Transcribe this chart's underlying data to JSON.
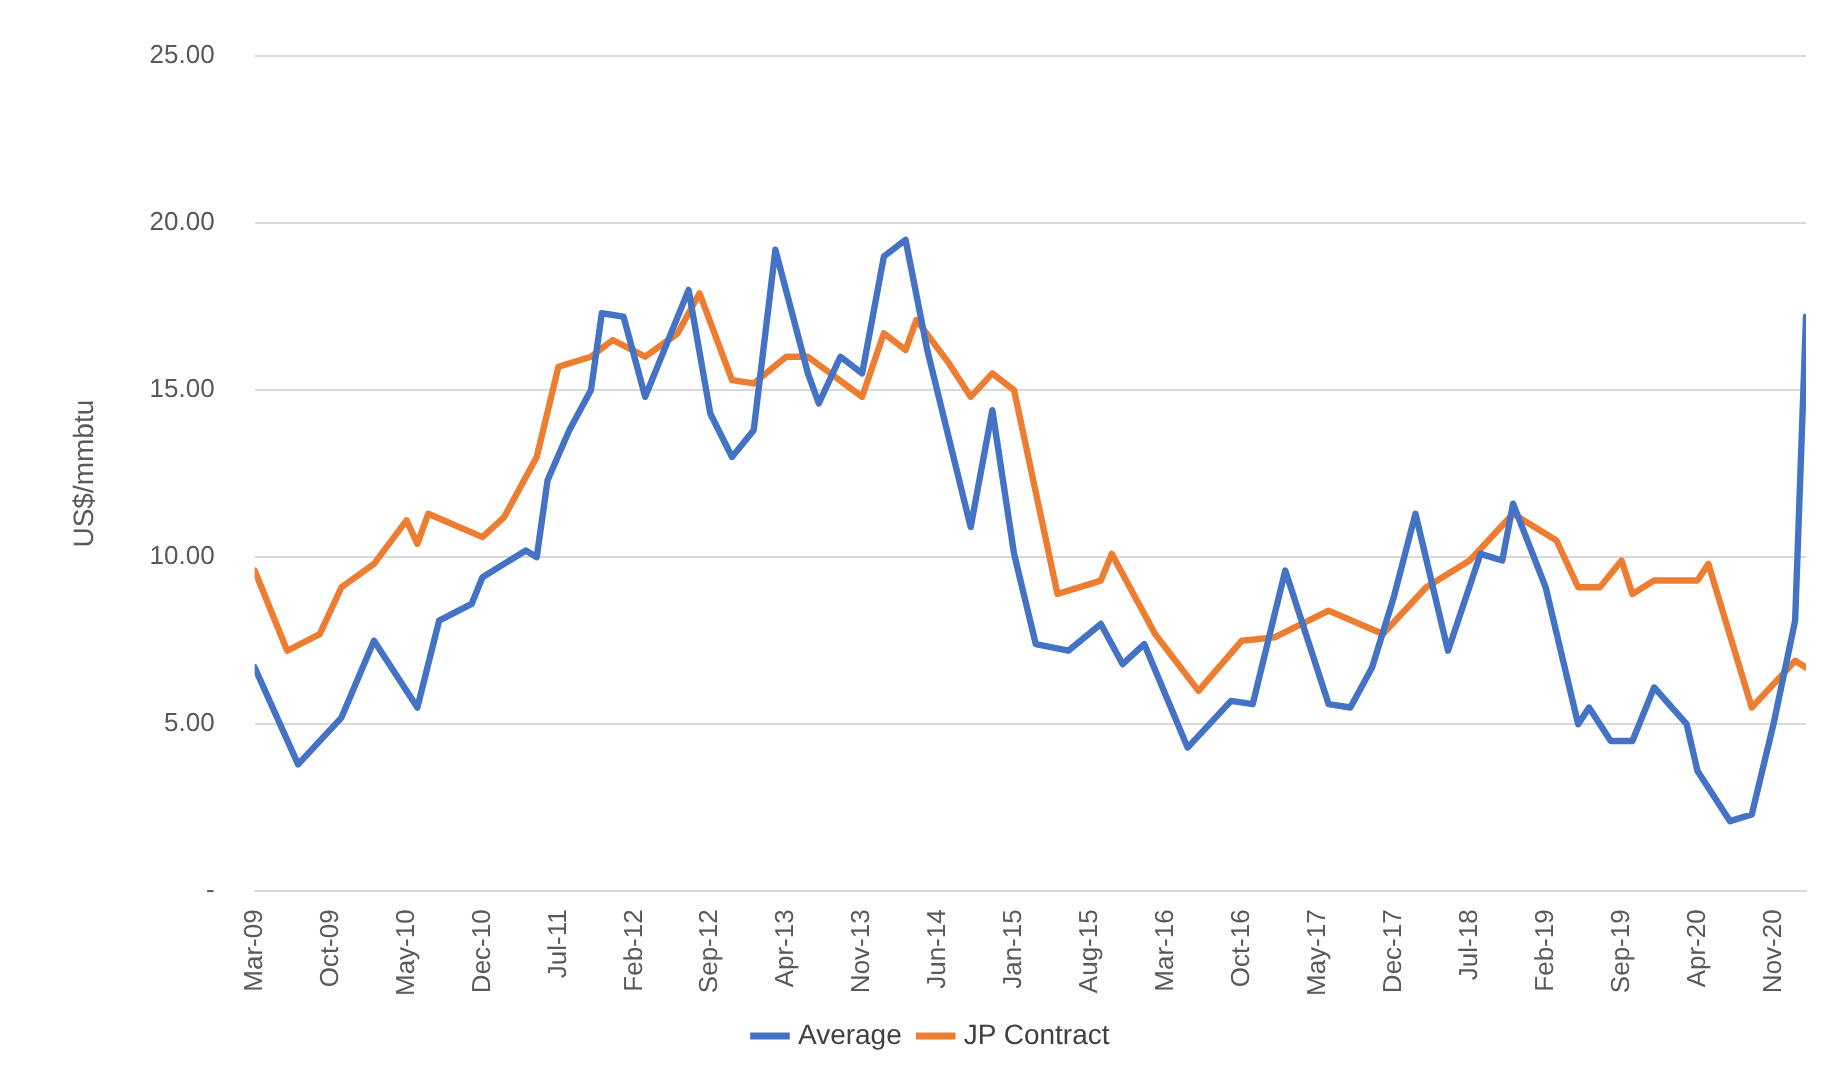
{
  "chart_data": {
    "type": "line",
    "ylabel": "US$/mmbtu",
    "xlim": [
      "2009-03",
      "2021-02"
    ],
    "xticks": [
      {
        "value": "2009-03",
        "label": "Mar-09"
      },
      {
        "value": "2009-10",
        "label": "Oct-09"
      },
      {
        "value": "2010-05",
        "label": "May-10"
      },
      {
        "value": "2010-12",
        "label": "Dec-10"
      },
      {
        "value": "2011-07",
        "label": "Jul-11"
      },
      {
        "value": "2012-02",
        "label": "Feb-12"
      },
      {
        "value": "2012-09",
        "label": "Sep-12"
      },
      {
        "value": "2013-04",
        "label": "Apr-13"
      },
      {
        "value": "2013-11",
        "label": "Nov-13"
      },
      {
        "value": "2014-06",
        "label": "Jun-14"
      },
      {
        "value": "2015-01",
        "label": "Jan-15"
      },
      {
        "value": "2015-08",
        "label": "Aug-15"
      },
      {
        "value": "2016-03",
        "label": "Mar-16"
      },
      {
        "value": "2016-10",
        "label": "Oct-16"
      },
      {
        "value": "2017-05",
        "label": "May-17"
      },
      {
        "value": "2017-12",
        "label": "Dec-17"
      },
      {
        "value": "2018-07",
        "label": "Jul-18"
      },
      {
        "value": "2019-02",
        "label": "Feb-19"
      },
      {
        "value": "2019-09",
        "label": "Sep-19"
      },
      {
        "value": "2020-04",
        "label": "Apr-20"
      },
      {
        "value": "2020-11",
        "label": "Nov-20"
      }
    ],
    "ylim": [
      0,
      25
    ],
    "yticks": [
      {
        "value": 0,
        "label": "-"
      },
      {
        "value": 5,
        "label": "5.00"
      },
      {
        "value": 10,
        "label": "10.00"
      },
      {
        "value": 15,
        "label": "15.00"
      },
      {
        "value": 20,
        "label": "20.00"
      },
      {
        "value": 25,
        "label": "25.00"
      }
    ],
    "grid": "y",
    "legend": "bottom",
    "series": [
      {
        "name": "Average",
        "color": "#4472c4",
        "x": [
          "2009-03",
          "2009-07",
          "2009-11",
          "2010-02",
          "2010-06",
          "2010-08",
          "2010-11",
          "2010-12",
          "2011-04",
          "2011-05",
          "2011-06",
          "2011-08",
          "2011-10",
          "2011-11",
          "2012-01",
          "2012-03",
          "2012-05",
          "2012-07",
          "2012-09",
          "2012-11",
          "2013-01",
          "2013-03",
          "2013-06",
          "2013-07",
          "2013-09",
          "2013-11",
          "2014-01",
          "2014-03",
          "2014-05",
          "2014-09",
          "2014-11",
          "2015-01",
          "2015-03",
          "2015-06",
          "2015-09",
          "2015-11",
          "2016-01",
          "2016-05",
          "2016-09",
          "2016-11",
          "2017-02",
          "2017-06",
          "2017-08",
          "2017-10",
          "2017-12",
          "2018-02",
          "2018-05",
          "2018-08",
          "2018-10",
          "2018-11",
          "2019-02",
          "2019-05",
          "2019-06",
          "2019-08",
          "2019-10",
          "2019-12",
          "2020-03",
          "2020-04",
          "2020-07",
          "2020-09",
          "2020-11",
          "2021-01",
          "2021-02"
        ],
        "values": [
          6.7,
          3.8,
          5.2,
          7.5,
          5.5,
          8.1,
          8.6,
          9.4,
          10.2,
          10.0,
          12.3,
          13.8,
          15.0,
          17.3,
          17.2,
          14.8,
          16.4,
          18.0,
          14.3,
          13.0,
          13.8,
          19.2,
          15.5,
          14.6,
          16.0,
          15.5,
          19.0,
          19.5,
          16.2,
          10.9,
          14.4,
          10.1,
          7.4,
          7.2,
          8.0,
          6.8,
          7.4,
          4.3,
          5.7,
          5.6,
          9.6,
          5.6,
          5.5,
          6.7,
          8.8,
          11.3,
          7.2,
          10.1,
          9.9,
          11.6,
          9.1,
          5.0,
          5.5,
          4.5,
          4.5,
          6.1,
          5.0,
          3.6,
          2.1,
          2.3,
          5.0,
          8.1,
          17.2
        ]
      },
      {
        "name": "JP Contract",
        "color": "#ed7d31",
        "x": [
          "2009-03",
          "2009-06",
          "2009-09",
          "2009-11",
          "2010-02",
          "2010-05",
          "2010-06",
          "2010-07",
          "2010-12",
          "2011-02",
          "2011-05",
          "2011-07",
          "2011-10",
          "2011-12",
          "2012-03",
          "2012-06",
          "2012-08",
          "2012-11",
          "2013-01",
          "2013-04",
          "2013-06",
          "2013-11",
          "2014-01",
          "2014-03",
          "2014-04",
          "2014-07",
          "2014-09",
          "2014-11",
          "2015-01",
          "2015-05",
          "2015-09",
          "2015-10",
          "2016-02",
          "2016-06",
          "2016-10",
          "2017-01",
          "2017-06",
          "2017-11",
          "2018-03",
          "2018-07",
          "2018-11",
          "2019-03",
          "2019-05",
          "2019-07",
          "2019-09",
          "2019-10",
          "2019-12",
          "2020-04",
          "2020-05",
          "2020-09",
          "2020-11",
          "2021-01",
          "2021-02"
        ],
        "values": [
          9.6,
          7.2,
          7.7,
          9.1,
          9.8,
          11.1,
          10.4,
          11.3,
          10.6,
          11.2,
          13.0,
          15.7,
          16.0,
          16.5,
          16.0,
          16.7,
          17.9,
          15.3,
          15.2,
          16.0,
          16.0,
          14.8,
          16.7,
          16.2,
          17.1,
          15.8,
          14.8,
          15.5,
          15.0,
          8.9,
          9.3,
          10.1,
          7.7,
          6.0,
          7.5,
          7.6,
          8.4,
          7.7,
          9.1,
          9.9,
          11.3,
          10.5,
          9.1,
          9.1,
          9.9,
          8.9,
          9.3,
          9.3,
          9.8,
          5.5,
          6.2,
          6.9,
          6.7
        ]
      }
    ]
  }
}
